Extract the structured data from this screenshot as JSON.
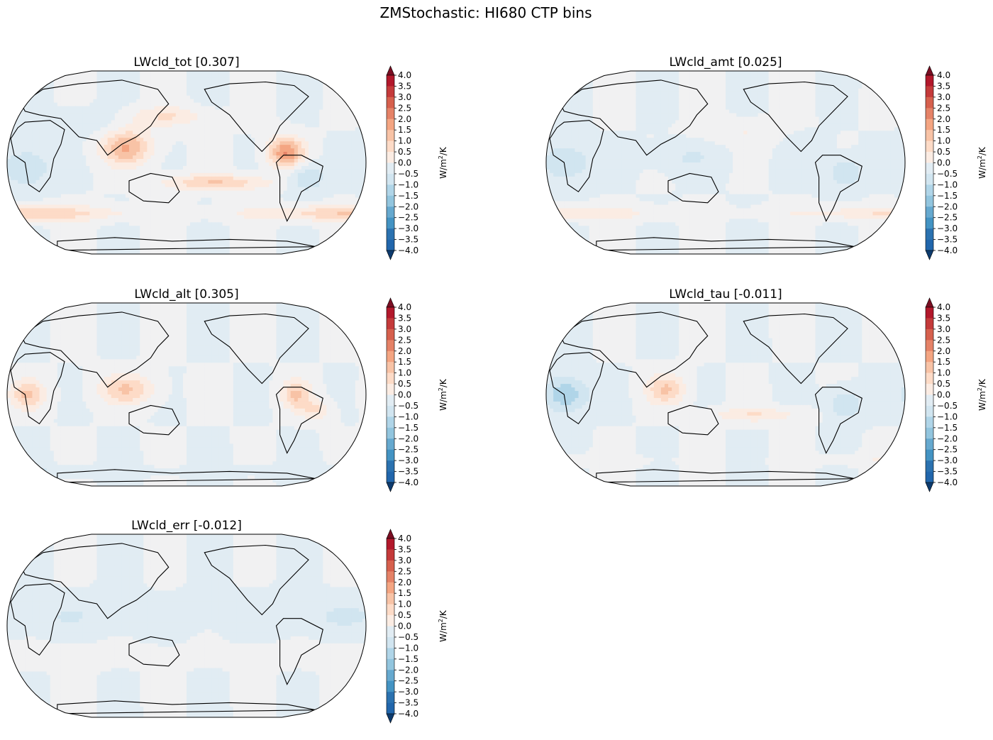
{
  "figure_title": "ZMStochastic: HI680 CTP bins",
  "colorbar": {
    "ticks": [
      "4.0",
      "3.5",
      "3.0",
      "2.5",
      "2.0",
      "1.5",
      "1.0",
      "0.5",
      "0.0",
      "−0.5",
      "−1.0",
      "−1.5",
      "−2.0",
      "−2.5",
      "−3.0",
      "−3.5",
      "−4.0"
    ],
    "colors": [
      "#b2182b",
      "#c43a3a",
      "#d6604d",
      "#e58267",
      "#f4a582",
      "#f8c3a6",
      "#fddbc7",
      "#fbece3",
      "#f1f1f2",
      "#e1ecf3",
      "#d1e5f0",
      "#b0d5e8",
      "#92c5de",
      "#66a9cf",
      "#4393c3",
      "#2b72b0",
      "#2166ac"
    ],
    "extend_max_color": "#7a0d22",
    "extend_min_color": "#0d3b6e",
    "units_prefix": "W/m",
    "units_power": "2",
    "units_suffix": "/K"
  },
  "chart_data": [
    {
      "type": "contourf-map",
      "projection": "Robinson",
      "title": "LWcld_tot [0.307]",
      "global_mean": 0.307,
      "features": [
        {
          "lon": 120,
          "lat": 15,
          "sx": 25,
          "sy": 18,
          "v": 2.0
        },
        {
          "lon": -80,
          "lat": 10,
          "sx": 18,
          "sy": 15,
          "v": 2.5
        },
        {
          "lon": -150,
          "lat": -20,
          "sx": 55,
          "sy": 8,
          "v": 1.5
        },
        {
          "lon": 0,
          "lat": -50,
          "sx": 120,
          "sy": 8,
          "v": 1.5
        },
        {
          "lon": 20,
          "lat": -5,
          "sx": 25,
          "sy": 20,
          "v": -1.0
        },
        {
          "lon": -60,
          "lat": -15,
          "sx": 20,
          "sy": 15,
          "v": -1.0
        },
        {
          "lon": 160,
          "lat": 45,
          "sx": 40,
          "sy": 10,
          "v": 1.0
        },
        {
          "lon": 75,
          "lat": 40,
          "sx": 40,
          "sy": 12,
          "v": -0.5
        }
      ]
    },
    {
      "type": "contourf-map",
      "projection": "Robinson",
      "title": "LWcld_amt [0.025]",
      "global_mean": 0.025,
      "features": [
        {
          "lon": 20,
          "lat": 0,
          "sx": 25,
          "sy": 20,
          "v": -1.0
        },
        {
          "lon": -60,
          "lat": -10,
          "sx": 18,
          "sy": 15,
          "v": -1.0
        },
        {
          "lon": 0,
          "lat": -50,
          "sx": 120,
          "sy": 7,
          "v": 1.0
        },
        {
          "lon": -160,
          "lat": 30,
          "sx": 45,
          "sy": 12,
          "v": 0.5
        },
        {
          "lon": 140,
          "lat": 5,
          "sx": 35,
          "sy": 15,
          "v": -0.5
        },
        {
          "lon": -100,
          "lat": 20,
          "sx": 20,
          "sy": 10,
          "v": -0.5
        }
      ]
    },
    {
      "type": "contourf-map",
      "projection": "Robinson",
      "title": "LWcld_alt [0.305]",
      "global_mean": 0.305,
      "features": [
        {
          "lon": 20,
          "lat": 0,
          "sx": 18,
          "sy": 15,
          "v": 1.5
        },
        {
          "lon": 120,
          "lat": 5,
          "sx": 28,
          "sy": 15,
          "v": 1.5
        },
        {
          "lon": -70,
          "lat": 0,
          "sx": 15,
          "sy": 15,
          "v": 1.5
        },
        {
          "lon": -50,
          "lat": -15,
          "sx": 15,
          "sy": 10,
          "v": 1.0
        },
        {
          "lon": 0,
          "lat": -75,
          "sx": 140,
          "sy": 5,
          "v": -0.5
        }
      ]
    },
    {
      "type": "contourf-map",
      "projection": "Robinson",
      "title": "LWcld_tau [-0.011]",
      "global_mean": -0.011,
      "features": [
        {
          "lon": 20,
          "lat": 0,
          "sx": 22,
          "sy": 18,
          "v": -1.5
        },
        {
          "lon": -60,
          "lat": -10,
          "sx": 18,
          "sy": 15,
          "v": -1.0
        },
        {
          "lon": 120,
          "lat": 5,
          "sx": 20,
          "sy": 15,
          "v": 1.5
        },
        {
          "lon": -150,
          "lat": -20,
          "sx": 45,
          "sy": 7,
          "v": 1.0
        },
        {
          "lon": 0,
          "lat": -65,
          "sx": 90,
          "sy": 5,
          "v": 0.5
        }
      ]
    },
    {
      "type": "contourf-map",
      "projection": "Robinson",
      "title": "LWcld_err [-0.012]",
      "global_mean": -0.012,
      "features": [
        {
          "lon": 0,
          "lat": 10,
          "sx": 180,
          "sy": 18,
          "v": -0.5
        },
        {
          "lon": 0,
          "lat": -30,
          "sx": 180,
          "sy": 10,
          "v": 0.5
        }
      ]
    }
  ]
}
